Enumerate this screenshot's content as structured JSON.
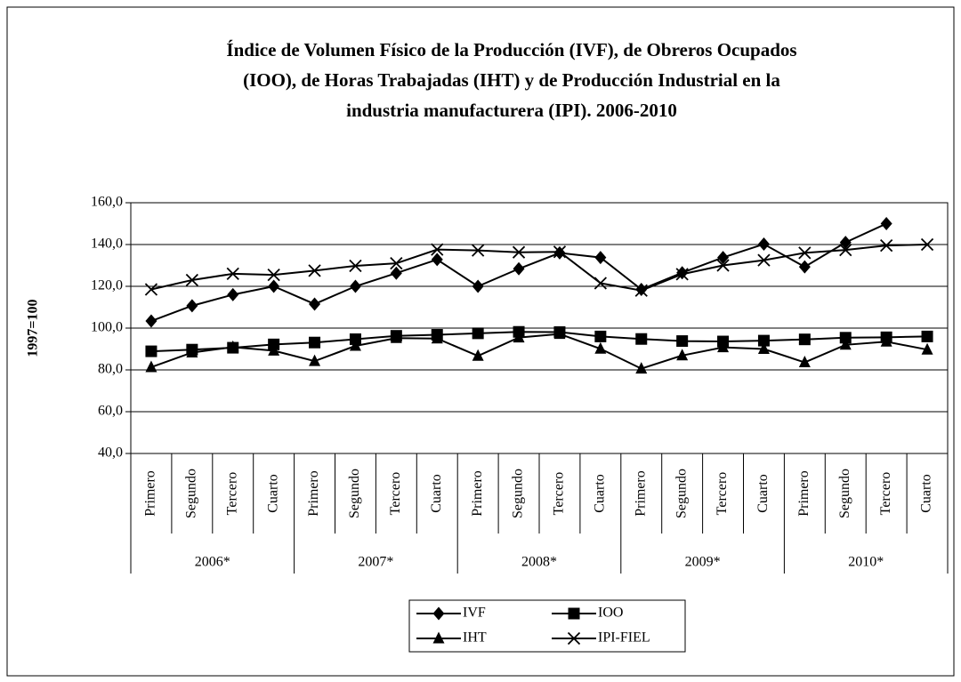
{
  "chart_data": {
    "type": "line",
    "title": [
      "Índice de Volumen Físico de la Producción (IVF), de Obreros Ocupados",
      "(IOO), de Horas Trabajadas (IHT) y de Producción Industrial en la",
      "industria manufacturera (IPI). 2006-2010"
    ],
    "y_label": "1997=100",
    "category_groups": [
      {
        "name": "2006*",
        "categories": [
          "Primero",
          "Segundo",
          "Tercero",
          "Cuarto"
        ]
      },
      {
        "name": "2007*",
        "categories": [
          "Primero",
          "Segundo",
          "Tercero",
          "Cuarto"
        ]
      },
      {
        "name": "2008*",
        "categories": [
          "Primero",
          "Segundo",
          "Tercero",
          "Cuarto"
        ]
      },
      {
        "name": "2009*",
        "categories": [
          "Primero",
          "Segundo",
          "Tercero",
          "Cuarto"
        ]
      },
      {
        "name": "2010*",
        "categories": [
          "Primero",
          "Segundo",
          "Tercero",
          "Cuarto"
        ]
      }
    ],
    "series": [
      {
        "name": "IVF",
        "color": "#000000",
        "marker": "diamond",
        "values": [
          103.4,
          110.7,
          116.0,
          120.0,
          111.5,
          120.0,
          126.3,
          132.8,
          120.0,
          128.4,
          136.0,
          133.8,
          118.5,
          126.5,
          133.8,
          140.2,
          129.3,
          141.0,
          150.0,
          null
        ]
      },
      {
        "name": "IOO",
        "color": "#000000",
        "marker": "square",
        "values": [
          88.9,
          89.7,
          90.6,
          92.2,
          93.1,
          94.7,
          96.3,
          96.8,
          97.5,
          98.2,
          98.1,
          96.0,
          94.8,
          93.8,
          93.6,
          94.0,
          94.6,
          95.4,
          95.6,
          96.0
        ]
      },
      {
        "name": "IHT",
        "color": "#000000",
        "marker": "triangle",
        "values": [
          81.3,
          88.3,
          90.9,
          89.2,
          84.2,
          91.5,
          95.2,
          95.0,
          86.7,
          95.5,
          97.2,
          90.1,
          80.6,
          86.9,
          90.8,
          90.0,
          83.6,
          92.0,
          93.5,
          89.7
        ]
      },
      {
        "name": "IPI-FIEL",
        "color": "#000000",
        "marker": "x",
        "values": [
          118.5,
          123.0,
          126.0,
          125.5,
          127.5,
          129.8,
          131.0,
          137.6,
          137.2,
          136.3,
          136.5,
          121.5,
          118.0,
          125.8,
          130.0,
          132.5,
          136.0,
          137.4,
          139.5,
          140.0
        ]
      }
    ],
    "ylim": [
      40,
      160
    ],
    "yticks": [
      {
        "value": 40,
        "label": "40,0"
      },
      {
        "value": 60,
        "label": "60,0"
      },
      {
        "value": 80,
        "label": "80,0"
      },
      {
        "value": 100,
        "label": "100,0"
      },
      {
        "value": 120,
        "label": "120,0"
      },
      {
        "value": 140,
        "label": "140,0"
      },
      {
        "value": 160,
        "label": "160,0"
      }
    ],
    "grid": true,
    "legend": "bottom"
  }
}
